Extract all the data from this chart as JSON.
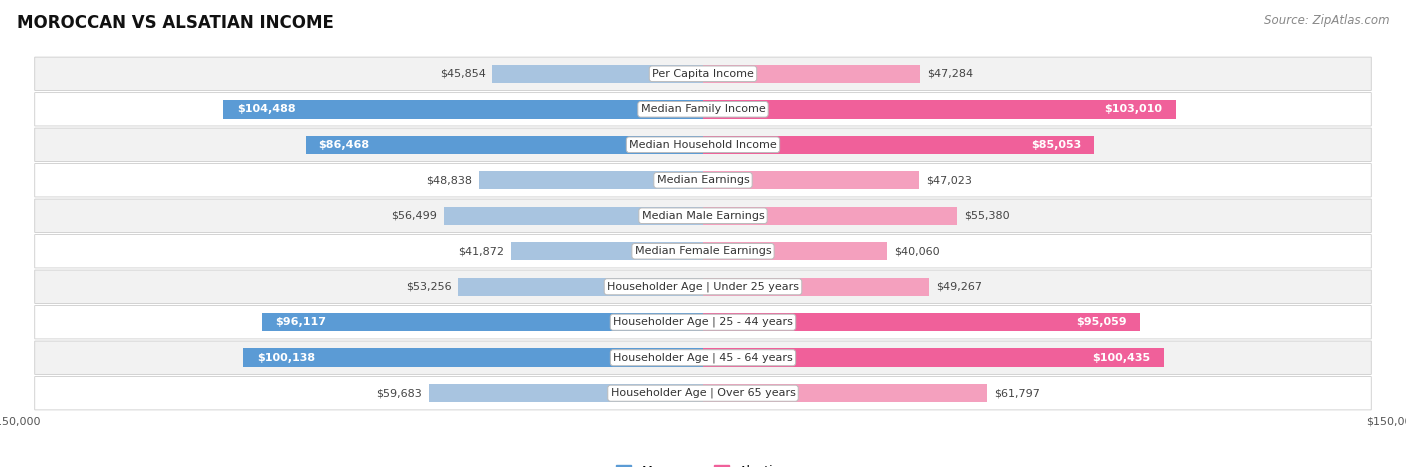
{
  "title": "MOROCCAN VS ALSATIAN INCOME",
  "source": "Source: ZipAtlas.com",
  "categories": [
    "Per Capita Income",
    "Median Family Income",
    "Median Household Income",
    "Median Earnings",
    "Median Male Earnings",
    "Median Female Earnings",
    "Householder Age | Under 25 years",
    "Householder Age | 25 - 44 years",
    "Householder Age | 45 - 64 years",
    "Householder Age | Over 65 years"
  ],
  "moroccan_values": [
    45854,
    104488,
    86468,
    48838,
    56499,
    41872,
    53256,
    96117,
    100138,
    59683
  ],
  "alsatian_values": [
    47284,
    103010,
    85053,
    47023,
    55380,
    40060,
    49267,
    95059,
    100435,
    61797
  ],
  "moroccan_labels": [
    "$45,854",
    "$104,488",
    "$86,468",
    "$48,838",
    "$56,499",
    "$41,872",
    "$53,256",
    "$96,117",
    "$100,138",
    "$59,683"
  ],
  "alsatian_labels": [
    "$47,284",
    "$103,010",
    "$85,053",
    "$47,023",
    "$55,380",
    "$40,060",
    "$49,267",
    "$95,059",
    "$100,435",
    "$61,797"
  ],
  "moroccan_color_light": "#a8c4e0",
  "moroccan_color_dark": "#5b9bd5",
  "alsatian_color_light": "#f4a0be",
  "alsatian_color_dark": "#f0609a",
  "max_value": 150000,
  "bar_height": 0.52,
  "label_threshold": 80000,
  "background_color": "#ffffff",
  "row_bg_odd": "#f2f2f2",
  "row_bg_even": "#ffffff",
  "title_fontsize": 12,
  "source_fontsize": 8.5,
  "label_fontsize": 8,
  "category_fontsize": 8,
  "axis_label_fontsize": 8,
  "legend_fontsize": 9
}
